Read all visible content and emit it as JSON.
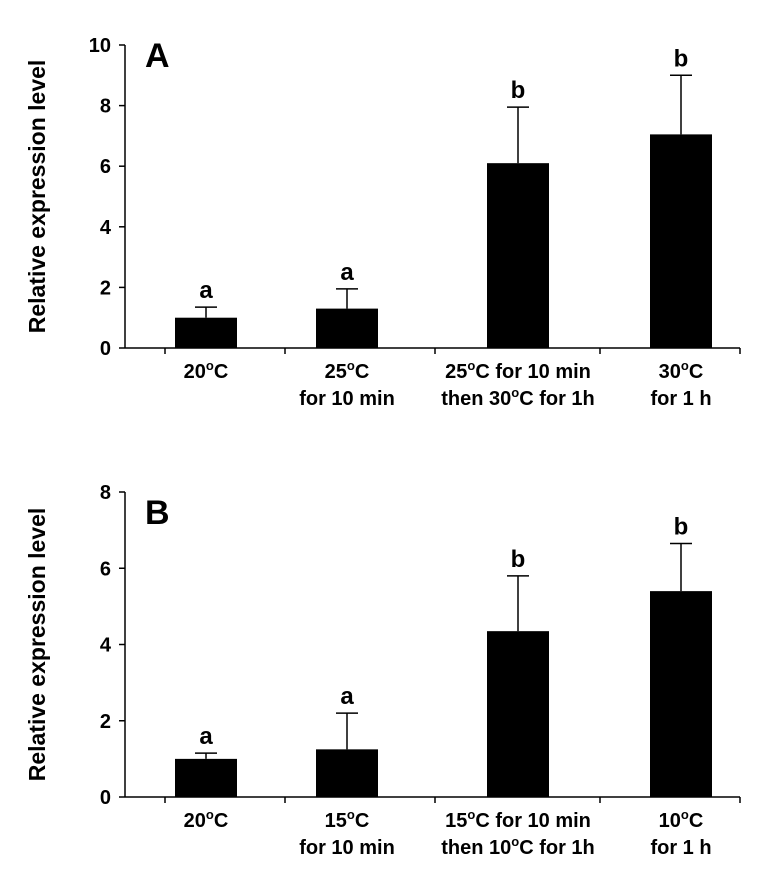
{
  "chart_data": [
    {
      "type": "bar",
      "panel": "A",
      "ylabel": "Relative expression level",
      "ylim": [
        0,
        10
      ],
      "yticks": [
        0,
        2,
        4,
        6,
        8,
        10
      ],
      "categories": [
        {
          "base": "20",
          "unit": "C",
          "line2": ""
        },
        {
          "base": "25",
          "unit": "C",
          "line2": "for 10 min"
        },
        {
          "base": "25",
          "unit": "C for 10 min",
          "line2": "then 30",
          "line2_unit": "C for 1h"
        },
        {
          "base": "30",
          "unit": "C",
          "line2": "for 1 h"
        }
      ],
      "degree": "o",
      "values": [
        1.0,
        1.3,
        6.1,
        7.05
      ],
      "error_upper": [
        1.35,
        1.95,
        7.95,
        9.0
      ],
      "significance": [
        "a",
        "a",
        "b",
        "b"
      ]
    },
    {
      "type": "bar",
      "panel": "B",
      "ylabel": "Relative expression level",
      "ylim": [
        0,
        8
      ],
      "yticks": [
        0,
        2,
        4,
        6,
        8
      ],
      "categories": [
        {
          "base": "20",
          "unit": "C",
          "line2": ""
        },
        {
          "base": "15",
          "unit": "C",
          "line2": "for 10 min"
        },
        {
          "base": "15",
          "unit": "C for 10 min",
          "line2": "then 10",
          "line2_unit": "C for 1h"
        },
        {
          "base": "10",
          "unit": "C",
          "line2": "for 1 h"
        }
      ],
      "degree": "o",
      "values": [
        1.0,
        1.25,
        4.35,
        5.4
      ],
      "error_upper": [
        1.15,
        2.2,
        5.8,
        6.65
      ],
      "significance": [
        "a",
        "a",
        "b",
        "b"
      ]
    }
  ]
}
